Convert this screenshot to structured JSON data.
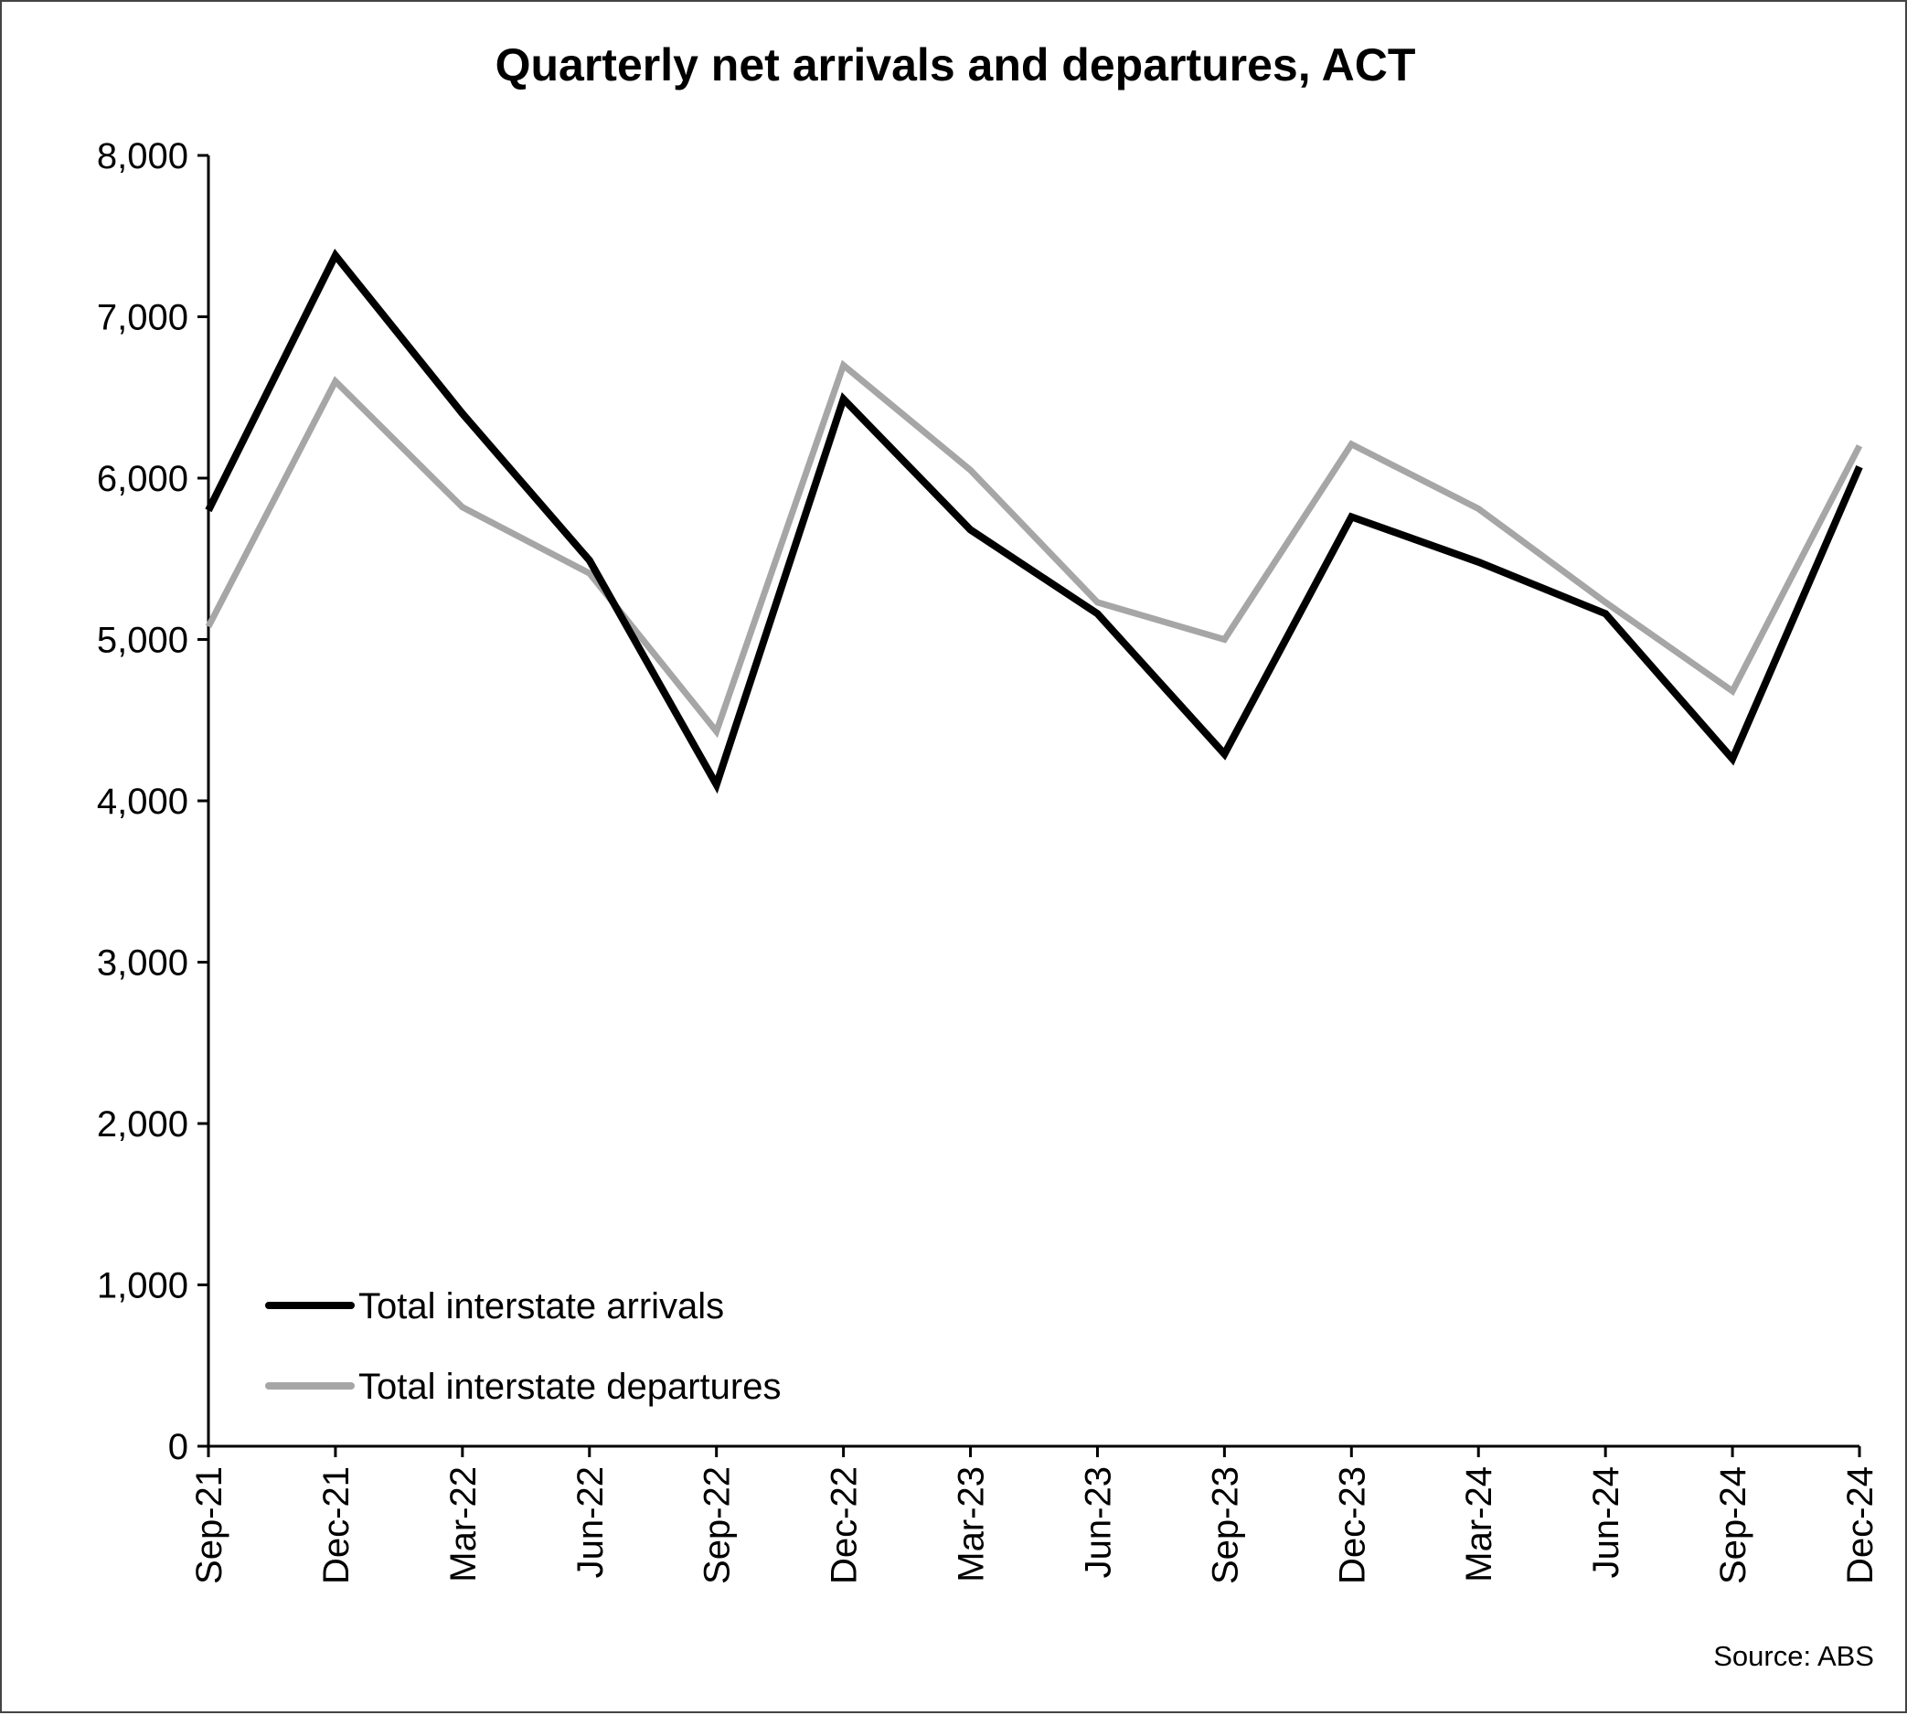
{
  "chart_data": {
    "type": "line",
    "title": "Quarterly net arrivals and departures, ACT",
    "xlabel": "",
    "ylabel": "",
    "categories": [
      "Sep-21",
      "Dec-21",
      "Mar-22",
      "Jun-22",
      "Sep-22",
      "Dec-22",
      "Mar-23",
      "Jun-23",
      "Sep-23",
      "Dec-23",
      "Mar-24",
      "Jun-24",
      "Sep-24",
      "Dec-24"
    ],
    "y_ticks": [
      "0",
      "1,000",
      "2,000",
      "3,000",
      "4,000",
      "5,000",
      "6,000",
      "7,000",
      "8,000"
    ],
    "ylim": [
      0,
      8000
    ],
    "grid": false,
    "legend_position": "bottom-left",
    "series": [
      {
        "name": "Total interstate arrivals",
        "color": "#000000",
        "values": [
          5800,
          7380,
          6400,
          5490,
          4100,
          6490,
          5680,
          5160,
          4290,
          5760,
          5480,
          5160,
          4260,
          6070
        ]
      },
      {
        "name": "Total interstate departures",
        "color": "#a6a6a6",
        "values": [
          5080,
          6600,
          5820,
          5410,
          4430,
          6700,
          6050,
          5230,
          5000,
          6210,
          5810,
          5230,
          4680,
          6200
        ]
      }
    ],
    "source": "Source: ABS"
  }
}
